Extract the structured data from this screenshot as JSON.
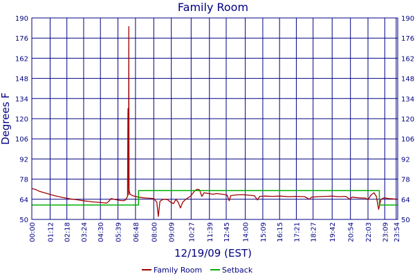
{
  "chart_data": {
    "type": "line",
    "title": "Family Room",
    "xlabel": "12/19/09 (EST)",
    "ylabel": "Degrees F",
    "x_range_hours": [
      0,
      24
    ],
    "ylim": [
      50,
      190
    ],
    "y_ticks": [
      50,
      64,
      78,
      92,
      106,
      120,
      134,
      148,
      162,
      176,
      190
    ],
    "x_ticks": [
      {
        "label": "00:00",
        "h": 0.0
      },
      {
        "label": "01:12",
        "h": 1.2
      },
      {
        "label": "02:18",
        "h": 2.3
      },
      {
        "label": "03:24",
        "h": 3.4
      },
      {
        "label": "04:30",
        "h": 4.5
      },
      {
        "label": "05:39",
        "h": 5.65
      },
      {
        "label": "06:48",
        "h": 6.8
      },
      {
        "label": "08:00",
        "h": 8.0
      },
      {
        "label": "09:09",
        "h": 9.15
      },
      {
        "label": "10:27",
        "h": 10.45
      },
      {
        "label": "11:39",
        "h": 11.65
      },
      {
        "label": "12:45",
        "h": 12.75
      },
      {
        "label": "14:00",
        "h": 14.0
      },
      {
        "label": "15:09",
        "h": 15.15
      },
      {
        "label": "16:15",
        "h": 16.25
      },
      {
        "label": "17:21",
        "h": 17.35
      },
      {
        "label": "18:27",
        "h": 18.45
      },
      {
        "label": "19:42",
        "h": 19.7
      },
      {
        "label": "20:54",
        "h": 20.9
      },
      {
        "label": "22:03",
        "h": 22.05
      },
      {
        "label": "23:09",
        "h": 23.15
      },
      {
        "label": "23:54",
        "h": 23.9
      }
    ],
    "grid": true,
    "legend_position": "bottom",
    "series": [
      {
        "name": "Family Room",
        "color": "#a00000",
        "points": [
          [
            0.0,
            71.5
          ],
          [
            0.25,
            70.8
          ],
          [
            0.5,
            69.5
          ],
          [
            1.0,
            68.0
          ],
          [
            1.5,
            66.5
          ],
          [
            2.0,
            65.3
          ],
          [
            2.5,
            64.3
          ],
          [
            3.0,
            63.6
          ],
          [
            3.5,
            62.8
          ],
          [
            4.0,
            62.2
          ],
          [
            4.5,
            61.8
          ],
          [
            4.9,
            61.3
          ],
          [
            5.05,
            62.5
          ],
          [
            5.2,
            64.5
          ],
          [
            5.4,
            64.0
          ],
          [
            5.6,
            63.5
          ],
          [
            5.8,
            63.2
          ],
          [
            6.0,
            63.0
          ],
          [
            6.15,
            63.5
          ],
          [
            6.28,
            66.0
          ],
          [
            6.3,
            120.0
          ],
          [
            6.31,
            127.0
          ],
          [
            6.33,
            100.0
          ],
          [
            6.35,
            67.0
          ],
          [
            6.36,
            184.0
          ],
          [
            6.38,
            70.0
          ],
          [
            6.45,
            67.5
          ],
          [
            6.6,
            66.5
          ],
          [
            6.8,
            66.0
          ],
          [
            7.0,
            65.5
          ],
          [
            7.3,
            65.0
          ],
          [
            7.6,
            64.8
          ],
          [
            8.0,
            64.5
          ],
          [
            8.2,
            62.0
          ],
          [
            8.3,
            52.0
          ],
          [
            8.4,
            62.5
          ],
          [
            8.6,
            64.0
          ],
          [
            8.9,
            63.8
          ],
          [
            9.1,
            62.0
          ],
          [
            9.3,
            61.0
          ],
          [
            9.45,
            64.0
          ],
          [
            9.6,
            62.0
          ],
          [
            9.75,
            58.0
          ],
          [
            9.9,
            62.0
          ],
          [
            10.1,
            64.0
          ],
          [
            10.4,
            66.0
          ],
          [
            10.7,
            70.0
          ],
          [
            10.85,
            71.0
          ],
          [
            11.0,
            70.5
          ],
          [
            11.15,
            66.0
          ],
          [
            11.3,
            68.5
          ],
          [
            11.6,
            68.0
          ],
          [
            11.9,
            67.5
          ],
          [
            12.1,
            68.0
          ],
          [
            12.5,
            67.5
          ],
          [
            12.8,
            67.0
          ],
          [
            12.95,
            63.0
          ],
          [
            13.05,
            66.5
          ],
          [
            13.4,
            67.0
          ],
          [
            13.8,
            67.2
          ],
          [
            14.3,
            66.8
          ],
          [
            14.6,
            66.5
          ],
          [
            14.8,
            63.5
          ],
          [
            14.95,
            66.0
          ],
          [
            15.3,
            66.2
          ],
          [
            15.8,
            66.0
          ],
          [
            16.3,
            66.2
          ],
          [
            16.8,
            65.8
          ],
          [
            17.3,
            66.0
          ],
          [
            17.9,
            65.8
          ],
          [
            18.2,
            64.0
          ],
          [
            18.35,
            65.5
          ],
          [
            18.8,
            65.8
          ],
          [
            19.3,
            66.0
          ],
          [
            19.7,
            66.2
          ],
          [
            20.1,
            65.8
          ],
          [
            20.6,
            66.0
          ],
          [
            20.85,
            64.0
          ],
          [
            21.0,
            65.5
          ],
          [
            21.4,
            65.0
          ],
          [
            21.9,
            64.8
          ],
          [
            22.05,
            63.5
          ],
          [
            22.25,
            67.0
          ],
          [
            22.45,
            68.5
          ],
          [
            22.6,
            66.0
          ],
          [
            22.75,
            57.0
          ],
          [
            22.9,
            64.0
          ],
          [
            23.1,
            65.0
          ],
          [
            23.4,
            64.5
          ],
          [
            23.8,
            64.2
          ],
          [
            24.0,
            64.0
          ]
        ]
      },
      {
        "name": "Setback",
        "color": "#00b000",
        "points": [
          [
            0.0,
            60.0
          ],
          [
            7.0,
            60.0
          ],
          [
            7.0,
            70.0
          ],
          [
            22.8,
            70.0
          ],
          [
            22.8,
            60.0
          ],
          [
            24.0,
            60.0
          ]
        ]
      }
    ]
  }
}
